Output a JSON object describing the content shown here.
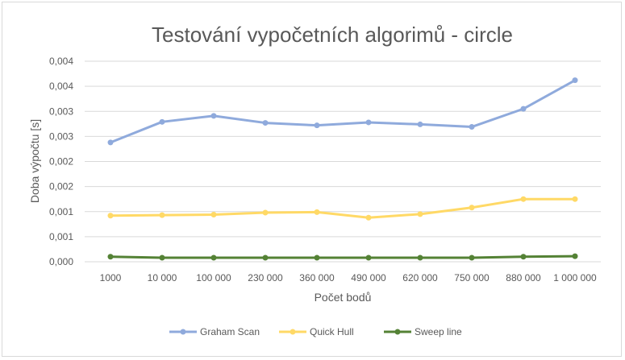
{
  "chart_data": {
    "type": "line",
    "title": "Testování vypočetních algorimů - circle",
    "xlabel": "Počet bodů",
    "ylabel": "Doba výpočtu [s]",
    "categories": [
      "1000",
      "10 000",
      "100 000",
      "230 000",
      "360 000",
      "490 000",
      "620 000",
      "750 000",
      "880 000",
      "1 000 000"
    ],
    "ytick_labels": [
      "0,000",
      "0,001",
      "0,001",
      "0,002",
      "0,002",
      "0,003",
      "0,003",
      "0,004",
      "0,004"
    ],
    "ylim": [
      0,
      0.004
    ],
    "grid": true,
    "legend_position": "bottom",
    "series": [
      {
        "name": "Graham Scan",
        "color": "#8faadc",
        "values": [
          0.00238,
          0.00279,
          0.00291,
          0.00277,
          0.00272,
          0.00278,
          0.00274,
          0.00269,
          0.00305,
          0.00362
        ]
      },
      {
        "name": "Quick Hull",
        "color": "#ffd966",
        "values": [
          0.00092,
          0.00093,
          0.00094,
          0.00098,
          0.00099,
          0.00088,
          0.00095,
          0.00108,
          0.00125,
          0.00125
        ]
      },
      {
        "name": "Sweep line",
        "color": "#548235",
        "values": [
          0.0001,
          8e-05,
          8e-05,
          8e-05,
          8e-05,
          8e-05,
          8e-05,
          8e-05,
          0.0001,
          0.00011
        ]
      }
    ]
  }
}
